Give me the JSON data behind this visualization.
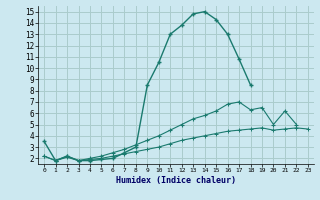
{
  "xlabel": "Humidex (Indice chaleur)",
  "bg_color": "#cce8f0",
  "grid_color": "#aacccc",
  "line_color": "#1a7a6e",
  "x_values": [
    0,
    1,
    2,
    3,
    4,
    5,
    6,
    7,
    8,
    9,
    10,
    11,
    12,
    13,
    14,
    15,
    16,
    17,
    18,
    19,
    20,
    21,
    22,
    23
  ],
  "line1": [
    3.5,
    1.8,
    2.2,
    1.8,
    1.8,
    1.9,
    2.0,
    2.5,
    3.0,
    8.5,
    10.5,
    13.0,
    13.8,
    14.8,
    15.0,
    14.3,
    13.0,
    10.8,
    8.5,
    null,
    null,
    null,
    null,
    null
  ],
  "line2": [
    2.2,
    1.8,
    2.2,
    1.8,
    2.0,
    2.2,
    2.5,
    2.8,
    3.2,
    3.6,
    4.0,
    4.5,
    5.0,
    5.5,
    5.8,
    6.2,
    6.8,
    7.0,
    6.3,
    6.5,
    5.0,
    6.2,
    5.0,
    null
  ],
  "line3": [
    2.2,
    1.8,
    2.1,
    1.8,
    1.9,
    2.0,
    2.2,
    2.4,
    2.6,
    2.8,
    3.0,
    3.3,
    3.6,
    3.8,
    4.0,
    4.2,
    4.4,
    4.5,
    4.6,
    4.7,
    4.5,
    4.6,
    4.7,
    4.6
  ],
  "ylim": [
    1.5,
    15.5
  ],
  "xlim": [
    -0.5,
    23.5
  ],
  "yticks": [
    2,
    3,
    4,
    5,
    6,
    7,
    8,
    9,
    10,
    11,
    12,
    13,
    14,
    15
  ],
  "xticks": [
    0,
    1,
    2,
    3,
    4,
    5,
    6,
    7,
    8,
    9,
    10,
    11,
    12,
    13,
    14,
    15,
    16,
    17,
    18,
    19,
    20,
    21,
    22,
    23
  ]
}
